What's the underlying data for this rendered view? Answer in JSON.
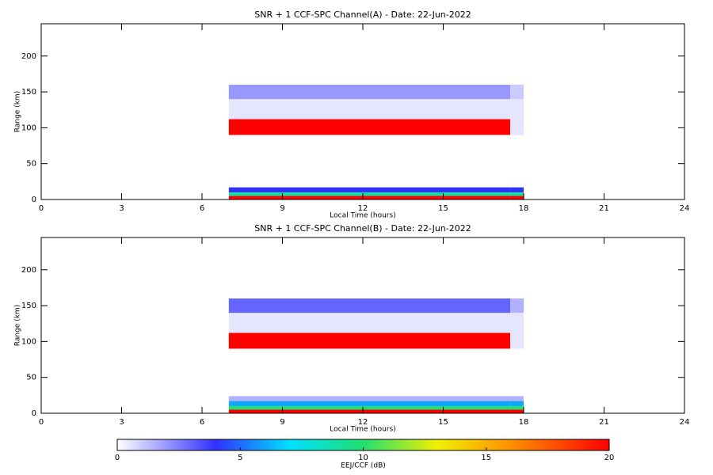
{
  "chart_data": [
    {
      "type": "heatmap",
      "title": "SNR + 1 CCF-SPC Channel(A) - Date: 22-Jun-2022",
      "x_label": "Local Time (hours)",
      "y_label": "Range (km)",
      "xlim": [
        0,
        24
      ],
      "xticks": [
        0,
        3,
        6,
        9,
        12,
        15,
        18,
        21,
        24
      ],
      "ylim": [
        0,
        245
      ],
      "yticks": [
        0,
        50,
        100,
        150,
        200
      ],
      "x_edges": [
        7,
        17.5,
        18
      ],
      "y_edges": [
        0,
        5,
        10,
        17,
        90,
        112,
        140,
        160,
        245
      ],
      "values": [
        [
          20,
          20
        ],
        [
          9,
          9
        ],
        [
          4,
          4
        ],
        [
          0,
          0
        ],
        [
          20,
          0.5
        ],
        [
          0.5,
          0.5
        ],
        [
          2,
          1
        ],
        [
          0,
          0
        ]
      ]
    },
    {
      "type": "heatmap",
      "title": "SNR + 1 CCF-SPC Channel(B) - Date: 22-Jun-2022",
      "x_label": "Local Time (hours)",
      "y_label": "Range (km)",
      "xlim": [
        0,
        24
      ],
      "xticks": [
        0,
        3,
        6,
        9,
        12,
        15,
        18,
        21,
        24
      ],
      "ylim": [
        0,
        245
      ],
      "yticks": [
        0,
        50,
        100,
        150,
        200
      ],
      "x_edges": [
        7,
        17.5,
        18
      ],
      "y_edges": [
        0,
        5,
        10,
        17,
        24,
        90,
        112,
        140,
        160,
        245
      ],
      "values": [
        [
          20,
          20
        ],
        [
          10,
          10
        ],
        [
          6,
          6
        ],
        [
          1.5,
          1.5
        ],
        [
          0,
          0
        ],
        [
          20,
          0.5
        ],
        [
          0.5,
          0.5
        ],
        [
          3,
          1.5
        ],
        [
          0,
          0
        ]
      ]
    }
  ],
  "colorbar": {
    "label": "EEJ/CCF (dB)",
    "lim": [
      0,
      20
    ],
    "ticks": [
      0,
      5,
      10,
      15,
      20
    ],
    "colorscale": [
      [
        0,
        "#ffffff"
      ],
      [
        4,
        "#3030ff"
      ],
      [
        7,
        "#00e0ff"
      ],
      [
        10,
        "#20e070"
      ],
      [
        13,
        "#f0f000"
      ],
      [
        16,
        "#ff9000"
      ],
      [
        20,
        "#ff0000"
      ]
    ]
  }
}
